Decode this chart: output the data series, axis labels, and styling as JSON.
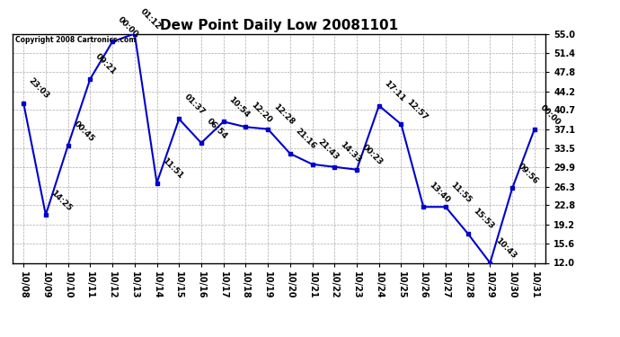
{
  "title": "Dew Point Daily Low 20081101",
  "copyright": "Copyright 2008 Cartronics.com",
  "x_labels": [
    "10/08",
    "10/09",
    "10/10",
    "10/11",
    "10/12",
    "10/13",
    "10/14",
    "10/15",
    "10/16",
    "10/17",
    "10/18",
    "10/19",
    "10/20",
    "10/21",
    "10/22",
    "10/23",
    "10/24",
    "10/25",
    "10/26",
    "10/27",
    "10/28",
    "10/29",
    "10/30",
    "10/31"
  ],
  "y_values": [
    42.0,
    21.0,
    34.0,
    46.5,
    53.5,
    55.0,
    27.0,
    39.0,
    34.5,
    38.5,
    37.5,
    37.1,
    32.5,
    30.5,
    30.0,
    29.5,
    41.5,
    38.0,
    22.5,
    22.5,
    17.5,
    12.0,
    26.0,
    37.1
  ],
  "point_labels": [
    "23:03",
    "14:25",
    "00:45",
    "09:21",
    "00:00",
    "01:12",
    "11:51",
    "01:37",
    "06:54",
    "10:54",
    "12:20",
    "12:28",
    "21:16",
    "21:43",
    "14:33",
    "00:23",
    "17:11",
    "12:57",
    "13:40",
    "11:55",
    "15:53",
    "10:43",
    "09:56",
    "00:00"
  ],
  "y_ticks": [
    12.0,
    15.6,
    19.2,
    22.8,
    26.3,
    29.9,
    33.5,
    37.1,
    40.7,
    44.2,
    47.8,
    51.4,
    55.0
  ],
  "y_min": 12.0,
  "y_max": 55.0,
  "line_color": "#0000cc",
  "marker_color": "#0000cc",
  "background_color": "#ffffff",
  "grid_color": "#aaaaaa",
  "title_fontsize": 11,
  "tick_fontsize": 7,
  "point_label_fontsize": 6.5
}
